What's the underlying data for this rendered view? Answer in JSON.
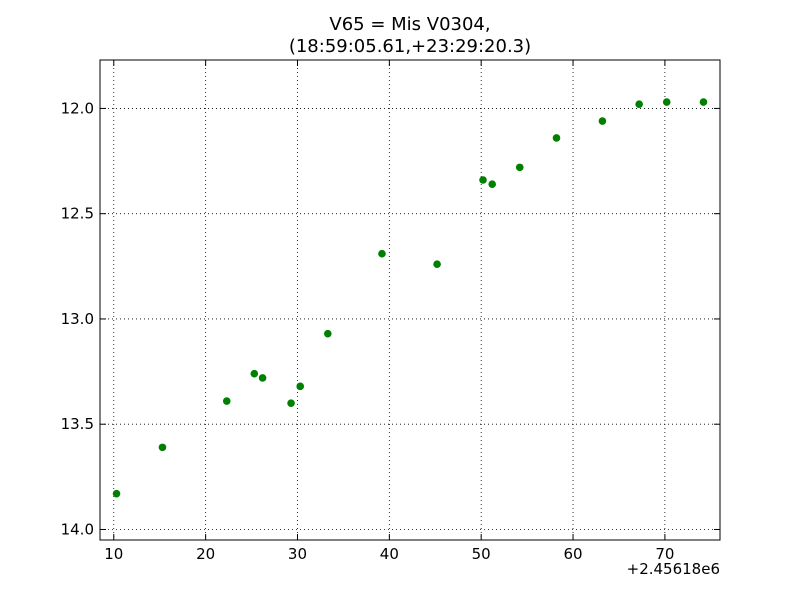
{
  "chart_data": {
    "type": "scatter",
    "title_lines": [
      "V65 = Mis V0304,",
      "(18:59:05.61,+23:29:20.3)"
    ],
    "xlabel": "",
    "ylabel": "",
    "x_offset_label": "+2.45618e6",
    "xlim": [
      8.5,
      76
    ],
    "ylim": [
      14.05,
      11.77
    ],
    "y_inverted": true,
    "grid": true,
    "marker_color": "#008000",
    "x_ticks": [
      10,
      20,
      30,
      40,
      50,
      60,
      70
    ],
    "x_tick_labels": [
      "10",
      "20",
      "30",
      "40",
      "50",
      "60",
      "70"
    ],
    "y_ticks": [
      12.0,
      12.5,
      13.0,
      13.5,
      14.0
    ],
    "y_tick_labels": [
      "12.0",
      "12.5",
      "13.0",
      "13.5",
      "14.0"
    ],
    "points": [
      {
        "x": 10.3,
        "y": 13.83
      },
      {
        "x": 15.3,
        "y": 13.61
      },
      {
        "x": 22.3,
        "y": 13.39
      },
      {
        "x": 25.3,
        "y": 13.26
      },
      {
        "x": 26.2,
        "y": 13.28
      },
      {
        "x": 29.3,
        "y": 13.4
      },
      {
        "x": 30.3,
        "y": 13.32
      },
      {
        "x": 33.3,
        "y": 13.07
      },
      {
        "x": 39.2,
        "y": 12.69
      },
      {
        "x": 45.2,
        "y": 12.74
      },
      {
        "x": 50.2,
        "y": 12.34
      },
      {
        "x": 51.2,
        "y": 12.36
      },
      {
        "x": 54.2,
        "y": 12.28
      },
      {
        "x": 58.2,
        "y": 12.14
      },
      {
        "x": 63.2,
        "y": 12.06
      },
      {
        "x": 67.2,
        "y": 11.98
      },
      {
        "x": 70.2,
        "y": 11.97
      },
      {
        "x": 74.2,
        "y": 11.97
      }
    ]
  }
}
